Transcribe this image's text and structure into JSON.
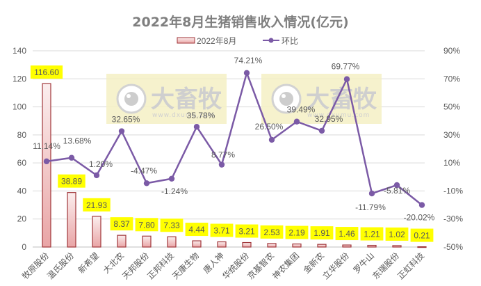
{
  "chart_data": {
    "type": "bar+line",
    "title": "2022年8月生猪销售收入情况(亿元)",
    "legend": [
      {
        "name": "2022年8月",
        "type": "bar"
      },
      {
        "name": "环比",
        "type": "line"
      }
    ],
    "legend_position": "top",
    "categories": [
      "牧原股份",
      "温氏股份",
      "新希望",
      "大北农",
      "天邦股份",
      "正邦科技",
      "天康生物",
      "唐人神",
      "华统股份",
      "京基智农",
      "神农集团",
      "金新农",
      "立华股份",
      "罗牛山",
      "东瑞股份",
      "正虹科技"
    ],
    "series": [
      {
        "name": "2022年8月",
        "type": "bar",
        "axis": "left",
        "values": [
          116.6,
          38.89,
          21.93,
          8.37,
          7.8,
          7.33,
          4.44,
          3.71,
          3.21,
          2.53,
          2.19,
          1.91,
          1.46,
          1.21,
          1.02,
          0.21
        ],
        "labels": [
          "116.60",
          "38.89",
          "21.93",
          "8.37",
          "7.80",
          "7.33",
          "4.44",
          "3.71",
          "3.21",
          "2.53",
          "2.19",
          "1.91",
          "1.46",
          "1.21",
          "1.02",
          "0.21"
        ]
      },
      {
        "name": "环比",
        "type": "line",
        "axis": "right",
        "values": [
          11.14,
          13.68,
          1.2,
          32.65,
          -4.47,
          -1.24,
          35.78,
          8.77,
          74.21,
          26.5,
          39.49,
          32.95,
          69.77,
          -11.79,
          -5.81,
          -20.02
        ],
        "labels": [
          "11.14%",
          "13.68%",
          "1.20%",
          "32.65%",
          "-4.47%",
          "-1.24%",
          "35.78%",
          "8.77%",
          "74.21%",
          "26.50%",
          "39.49%",
          "32.95%",
          "69.77%",
          "-11.79%",
          "-5.81%",
          "-20.02%"
        ]
      }
    ],
    "y_left": {
      "min": 0,
      "max": 140,
      "step": 20,
      "ticks": [
        "0",
        "20",
        "40",
        "60",
        "80",
        "100",
        "120",
        "140"
      ]
    },
    "y_right": {
      "min": -50,
      "max": 90,
      "step": 20,
      "ticks": [
        "-50%",
        "-30%",
        "-10%",
        "10%",
        "30%",
        "50%",
        "70%",
        "90%"
      ]
    },
    "grid": true,
    "xlabel": "",
    "ylabel": ""
  },
  "watermark": {
    "text": "大畜牧",
    "url": "www.dxumu.com"
  },
  "colors": {
    "bar_fill_top": "#f8e4e4",
    "bar_fill_bottom": "#e9a7a7",
    "bar_stroke": "#a0363a",
    "line": "#7b5aa6",
    "label_highlight": "#ffff00",
    "grid": "#d9d9d9",
    "watermark_bg": "#f5f0c4"
  }
}
